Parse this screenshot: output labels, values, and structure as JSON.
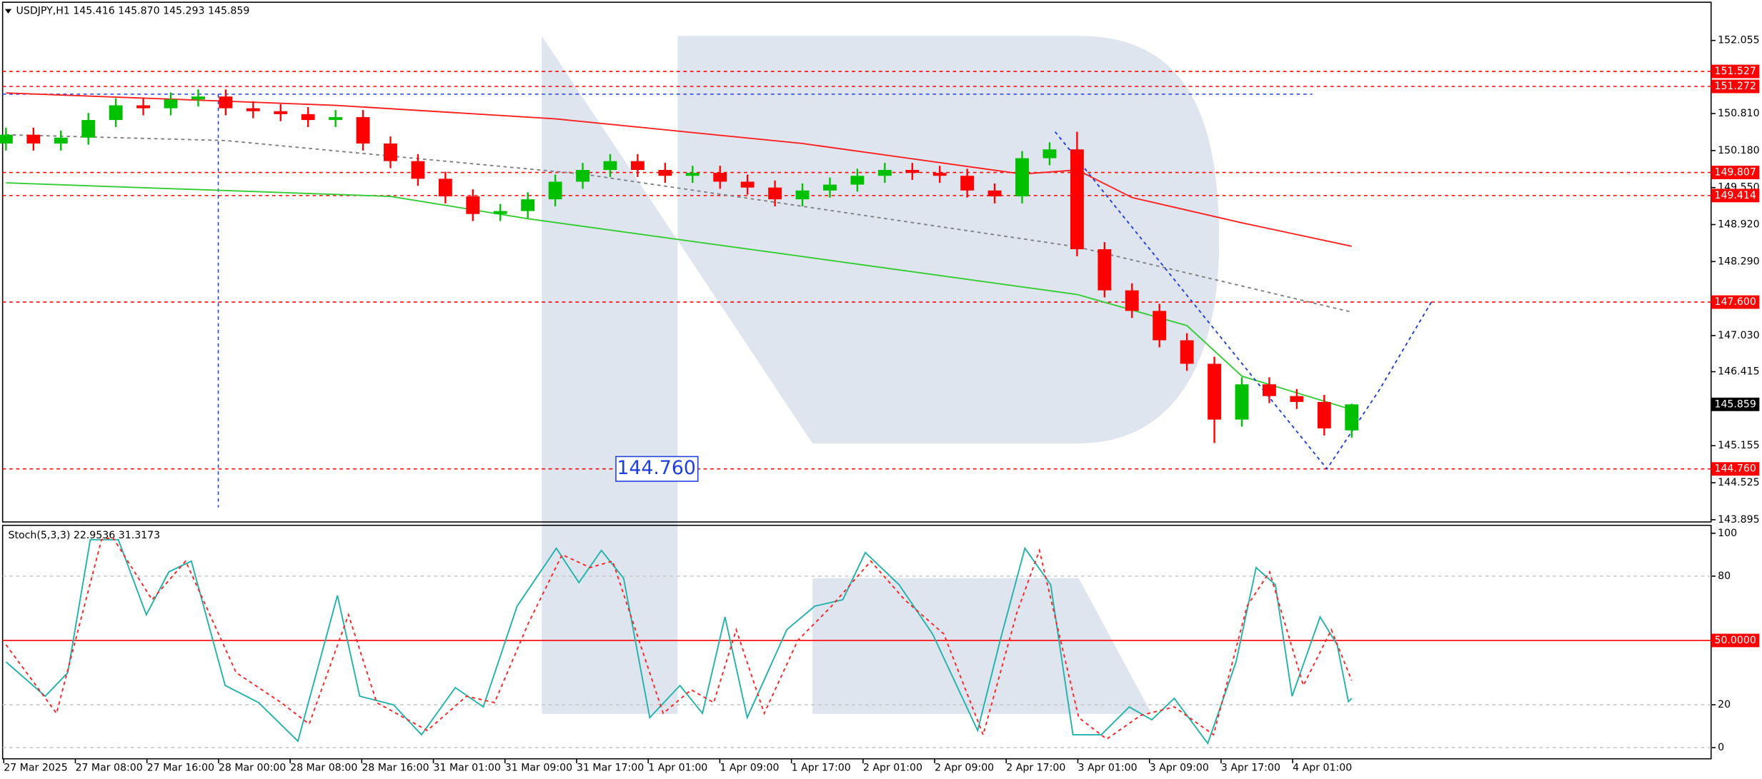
{
  "chart_data": [
    {
      "type": "candlestick",
      "title": "USDJPY,H1  145.416 145.870 145.293 145.859",
      "ylim": [
        143.857,
        152.705
      ],
      "yticks": [
        152.055,
        {
          "value": 150.81,
          "label": "150.810"
        },
        {
          "value": 150.18,
          "label": "150.180"
        },
        {
          "value": 149.55,
          "label": "149.550"
        },
        {
          "value": 148.92,
          "label": "148.920"
        },
        {
          "value": 148.29,
          "label": "148.290"
        },
        {
          "value": 147.03,
          "label": "147.030"
        },
        146.415,
        145.155,
        144.525,
        143.895
      ],
      "levels": [
        151.527,
        151.272,
        149.807,
        149.414,
        {
          "value": 147.6,
          "label": "147.600"
        },
        {
          "value": 144.76,
          "label": "144.760"
        }
      ],
      "level_color": "#ff0000",
      "current_price": 145.859,
      "up_color": "#00c000",
      "down_color": "#ff0000",
      "open": [
        150.3,
        150.45,
        150.3,
        150.4,
        150.7,
        150.95,
        150.9,
        151.05,
        151.1,
        150.9,
        150.85,
        150.8,
        150.7,
        150.75,
        150.3,
        150.0,
        149.7,
        149.4,
        149.1,
        149.15,
        149.35,
        149.65,
        149.85,
        150.0,
        149.85,
        149.75,
        149.8,
        149.65,
        149.55,
        149.35,
        149.5,
        149.6,
        149.75,
        149.85,
        149.8,
        149.75,
        149.5,
        149.4,
        150.05,
        150.2,
        148.5,
        147.8,
        147.45,
        146.95,
        146.55,
        145.6,
        146.2,
        146.0,
        145.9,
        145.416
      ],
      "high": [
        150.57,
        150.57,
        150.52,
        150.82,
        151.07,
        151.07,
        151.17,
        151.22,
        151.22,
        151.02,
        150.97,
        150.92,
        150.87,
        150.87,
        150.42,
        150.12,
        149.82,
        149.52,
        149.27,
        149.47,
        149.77,
        149.97,
        150.12,
        150.12,
        149.97,
        149.92,
        149.92,
        149.77,
        149.67,
        149.62,
        149.72,
        149.87,
        149.97,
        149.97,
        149.92,
        149.87,
        149.62,
        150.17,
        150.32,
        150.5,
        148.62,
        147.92,
        147.57,
        147.07,
        146.67,
        146.32,
        146.32,
        146.12,
        146.02,
        145.87
      ],
      "low": [
        150.18,
        150.18,
        150.18,
        150.28,
        150.58,
        150.78,
        150.78,
        150.93,
        150.78,
        150.73,
        150.68,
        150.58,
        150.58,
        150.18,
        149.88,
        149.58,
        149.28,
        148.98,
        148.98,
        149.03,
        149.23,
        149.53,
        149.73,
        149.73,
        149.63,
        149.63,
        149.53,
        149.43,
        149.23,
        149.23,
        149.38,
        149.48,
        149.63,
        149.68,
        149.63,
        149.38,
        149.28,
        149.28,
        149.93,
        148.38,
        147.68,
        147.33,
        146.83,
        146.43,
        145.2,
        145.48,
        145.88,
        145.78,
        145.33,
        145.293
      ],
      "close": [
        150.45,
        150.3,
        150.4,
        150.7,
        150.95,
        150.9,
        151.05,
        151.1,
        150.9,
        150.85,
        150.8,
        150.7,
        150.75,
        150.3,
        150.0,
        149.7,
        149.4,
        149.1,
        149.15,
        149.35,
        149.65,
        149.85,
        150.0,
        149.85,
        149.75,
        149.8,
        149.65,
        149.55,
        149.35,
        149.5,
        149.6,
        149.75,
        149.85,
        149.8,
        149.75,
        149.5,
        149.4,
        150.05,
        150.2,
        148.5,
        147.8,
        147.45,
        146.95,
        146.55,
        145.6,
        146.2,
        146.0,
        145.9,
        145.45,
        145.859
      ],
      "lines": [
        {
          "color": "#ff2020",
          "dash": false,
          "x": [
            0,
            12,
            20,
            29,
            37,
            39,
            41,
            45,
            49
          ],
          "values": [
            151.16,
            150.95,
            150.72,
            150.3,
            149.78,
            149.85,
            149.38,
            148.95,
            148.55
          ]
        },
        {
          "color": "#33cc33",
          "dash": false,
          "x": [
            0,
            14,
            19,
            28,
            39,
            43,
            45,
            49
          ],
          "values": [
            149.63,
            149.4,
            149.02,
            148.44,
            147.73,
            147.2,
            146.34,
            145.77
          ]
        },
        {
          "color": "#808080",
          "dash": true,
          "x": [
            0,
            8,
            21,
            28,
            39,
            49
          ],
          "values": [
            150.45,
            150.35,
            149.78,
            149.3,
            148.54,
            147.43
          ]
        },
        {
          "color": "#1f3fe0",
          "dash": true,
          "x": [
            38.2,
            43.2,
            48.1,
            50,
            51.9
          ],
          "values": [
            150.5,
            147.6,
            144.76,
            146.1,
            147.6
          ]
        }
      ],
      "guide_color": "#1f3fe0",
      "guide_hline": 151.14,
      "guide_vline_x": 7.73
    },
    {
      "type": "line",
      "title": "Stoch(5,3,3) 22.9536 31.3173",
      "ylim": [
        -5.2,
        103.7
      ],
      "yticks": [
        100,
        80,
        20,
        0
      ],
      "levels": [
        {
          "value": 50,
          "label": "50.0000"
        }
      ],
      "level_color": "#ff0000",
      "series": [
        {
          "color": "#20b2aa",
          "dash": false,
          "x": [
            0,
            1.43,
            2.25,
            3.07,
            4.09,
            5.11,
            5.93,
            6.75,
            7.98,
            9.2,
            10.63,
            12.07,
            12.88,
            14.11,
            15.13,
            16.36,
            17.38,
            18.61,
            20.04,
            20.86,
            21.68,
            22.49,
            23.44,
            24.54,
            25.36,
            26.18,
            26.99,
            28.43,
            29.45,
            30.47,
            31.29,
            32.52,
            33.74,
            35.38,
            36.2,
            37.1,
            38.04,
            38.85,
            39.88,
            40.9,
            41.72,
            42.54,
            43.76,
            44.79,
            45.52,
            46.22,
            46.83,
            47.85,
            48.47,
            48.88,
            49
          ],
          "values": [
            40,
            24,
            35,
            97,
            97,
            62,
            82,
            87,
            29,
            21,
            3,
            71,
            24,
            20,
            6,
            28,
            19,
            66,
            93,
            77,
            92,
            79,
            14,
            29,
            16,
            61,
            14,
            55,
            66,
            69,
            91,
            76,
            53,
            8,
            50,
            93,
            76,
            6,
            6,
            19,
            13,
            23,
            2,
            40,
            84,
            76,
            24,
            61,
            48,
            21.5,
            22.9536
          ]
        },
        {
          "color": "#ff2020",
          "dash": true,
          "x": [
            0,
            1.84,
            3.48,
            3.89,
            5.32,
            6.54,
            8.38,
            10.02,
            11.04,
            12.47,
            13.5,
            15.34,
            16.77,
            17.79,
            19.02,
            20.25,
            21.27,
            22.09,
            23.93,
            24.95,
            25.77,
            26.59,
            27.61,
            28.83,
            30.06,
            31.49,
            32.72,
            34.15,
            35.58,
            36.81,
            37.63,
            39.06,
            40.08,
            41.31,
            42.54,
            43.97,
            45.19,
            46.01,
            47.24,
            48.26,
            49
          ],
          "values": [
            48,
            16,
            97,
            98,
            69,
            87,
            35,
            21,
            11,
            62,
            21,
            8,
            24,
            21,
            58,
            90,
            84,
            87,
            16,
            27,
            21,
            55,
            16,
            50,
            66,
            87,
            69,
            53,
            6,
            63,
            92,
            14,
            4,
            15,
            19,
            6,
            66,
            82,
            29,
            55,
            31.3173
          ]
        }
      ],
      "x_labels": [
        "27 Mar 2025",
        "27 Mar 08:00",
        "27 Mar 16:00",
        "28 Mar 00:00",
        "28 Mar 08:00",
        "28 Mar 16:00",
        "31 Mar 01:00",
        "31 Mar 09:00",
        "31 Mar 17:00",
        "1 Apr 01:00",
        "1 Apr 09:00",
        "1 Apr 17:00",
        "2 Apr 01:00",
        "2 Apr 09:00",
        "2 Apr 17:00",
        "3 Apr 01:00",
        "3 Apr 09:00",
        "3 Apr 17:00",
        "4 Apr 01:00"
      ]
    }
  ]
}
